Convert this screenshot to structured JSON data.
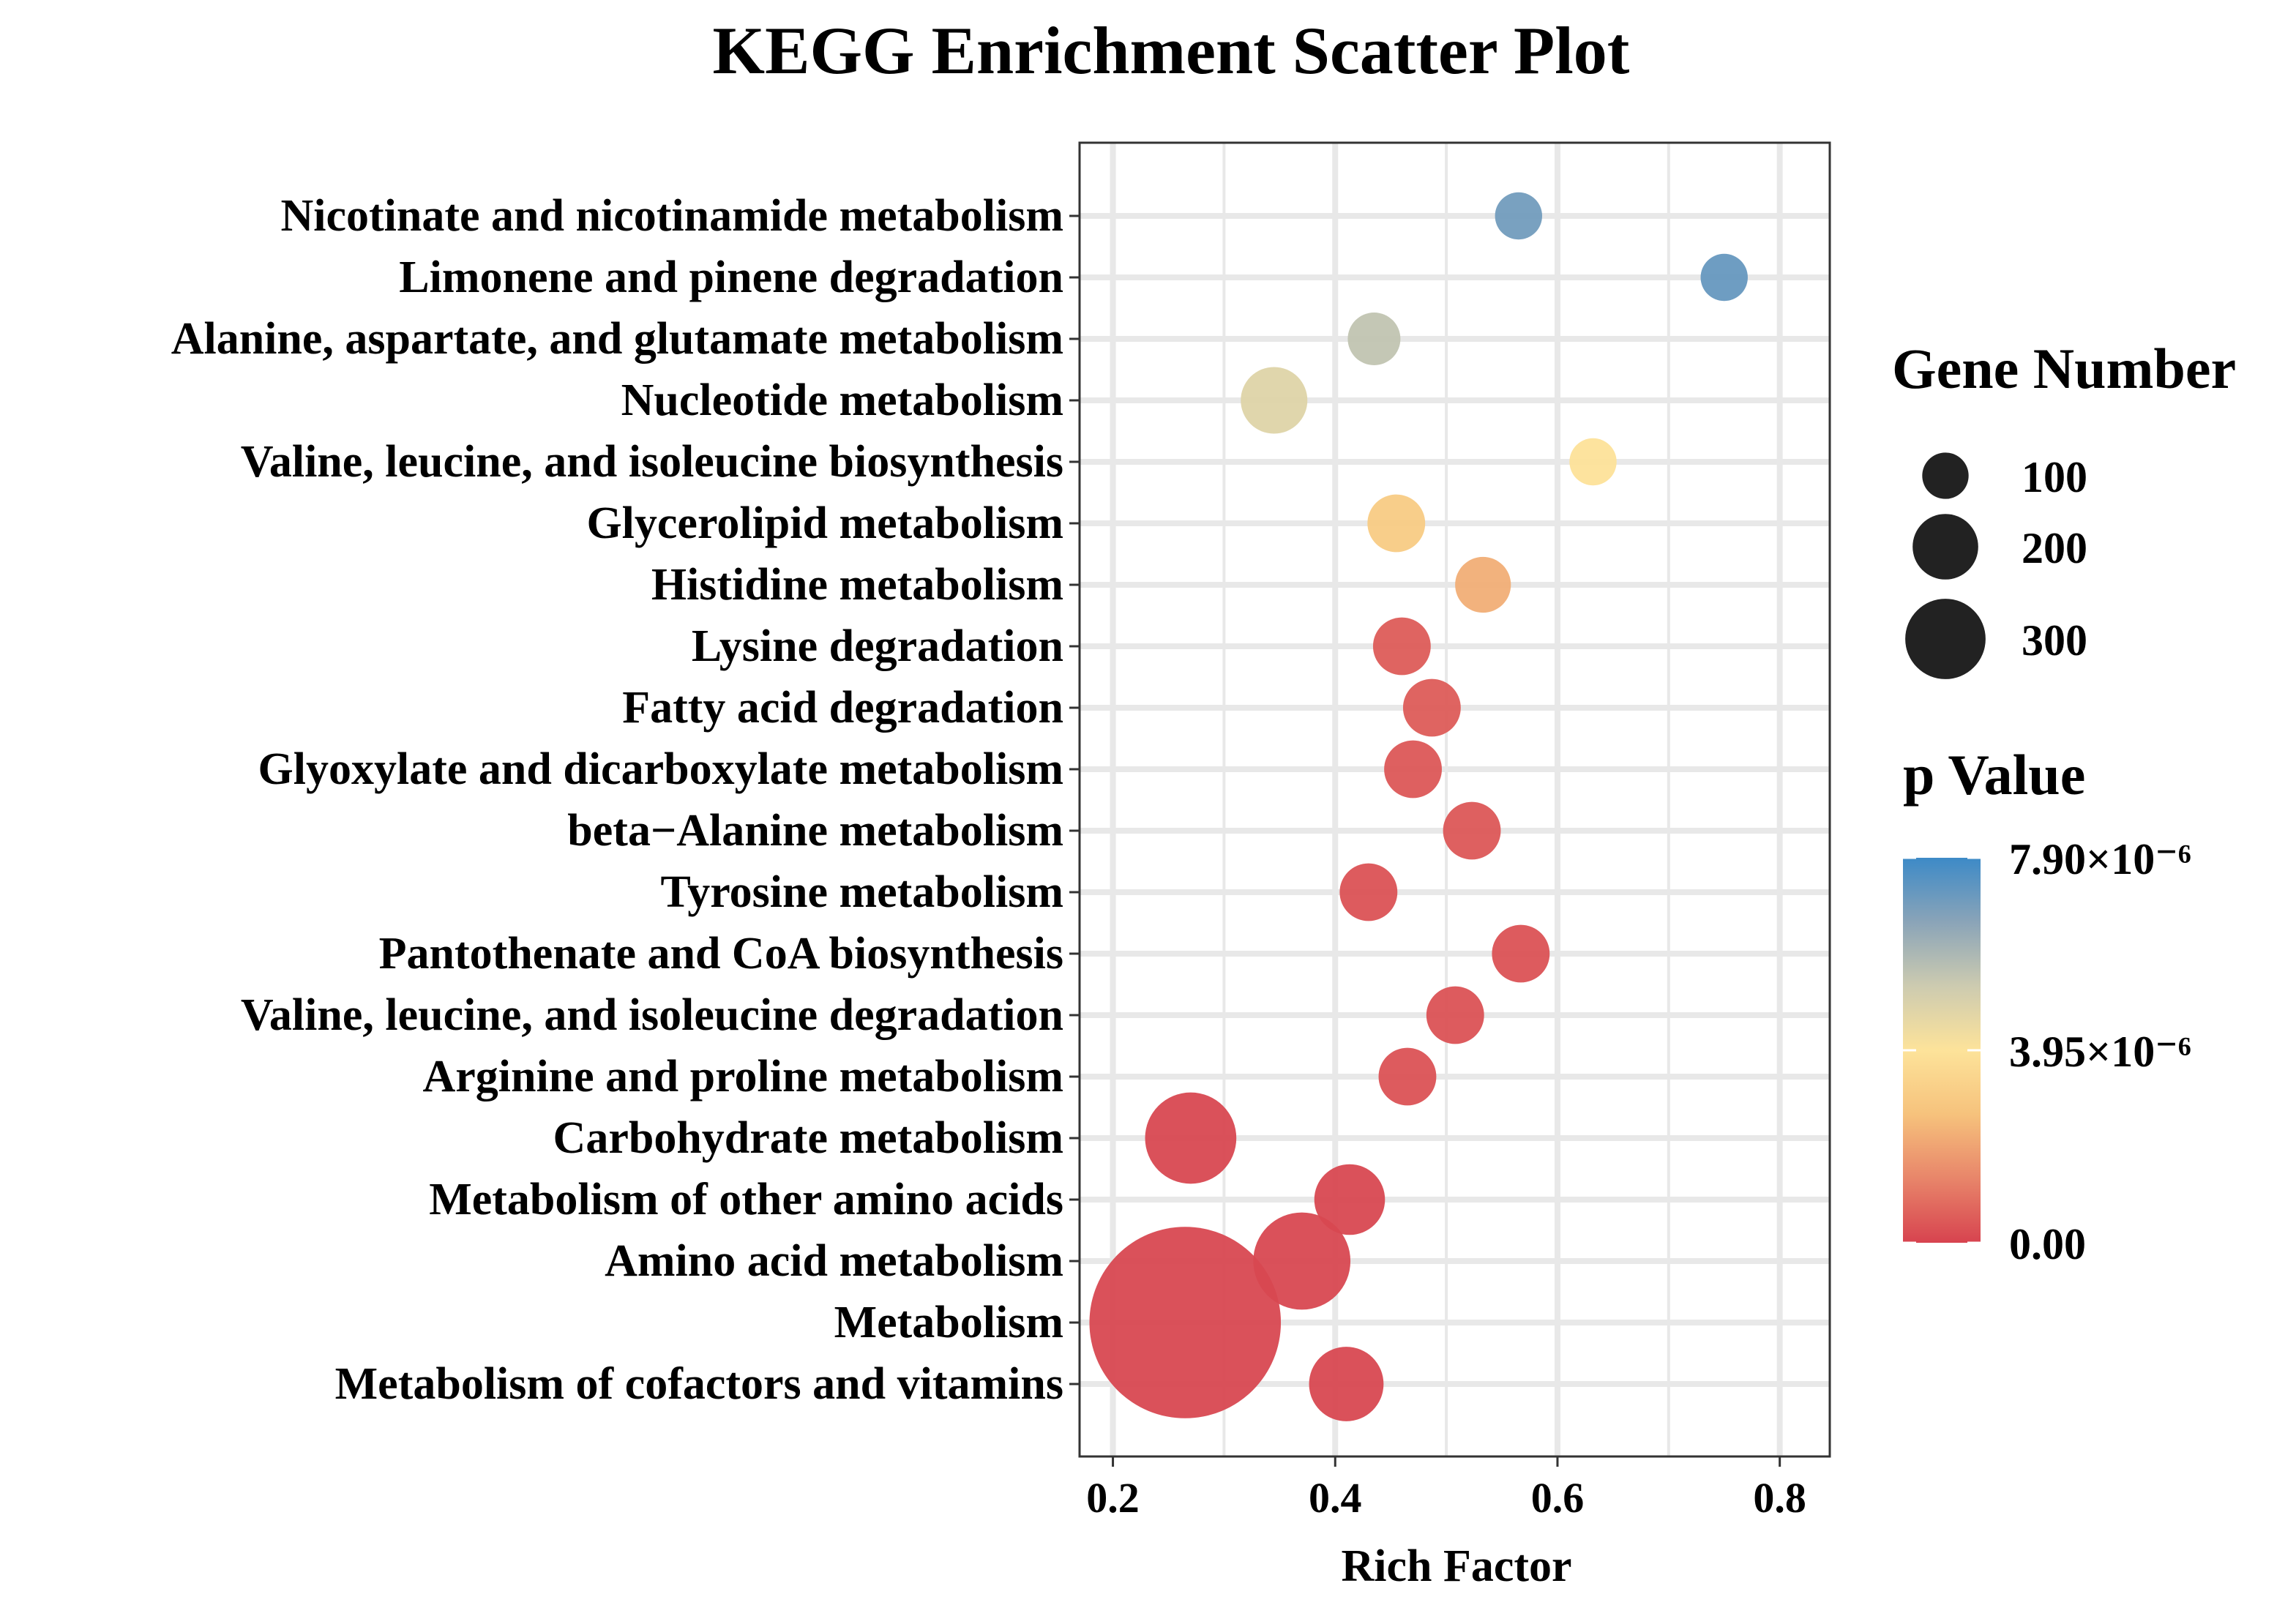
{
  "chart_data": {
    "type": "scatter",
    "title": "KEGG Enrichment Scatter Plot",
    "xlabel": "Rich Factor",
    "ylabel": "",
    "xlim": [
      0.17,
      0.845
    ],
    "x_ticks": [
      0.2,
      0.4,
      0.6,
      0.8
    ],
    "x_tick_labels": [
      "0.2",
      "0.4",
      "0.6",
      "0.8"
    ],
    "grid": true,
    "legend_position": "right",
    "categories": [
      "Nicotinate and nicotinamide metabolism",
      "Limonene and pinene degradation",
      "Alanine, aspartate, and glutamate metabolism",
      "Nucleotide metabolism",
      "Valine, leucine, and isoleucine biosynthesis",
      "Glycerolipid metabolism",
      "Histidine metabolism",
      "Lysine degradation",
      "Fatty acid degradation",
      "Glyoxylate and dicarboxylate metabolism",
      "beta−Alanine metabolism",
      "Tyrosine metabolism",
      "Pantothenate and CoA biosynthesis",
      "Valine, leucine, and isoleucine degradation",
      "Arginine and proline metabolism",
      "Carbohydrate metabolism",
      "Metabolism of other amino acids",
      "Amino acid metabolism",
      "Metabolism",
      "Metabolism of cofactors and vitamins"
    ],
    "points": [
      {
        "category": "Nicotinate and nicotinamide metabolism",
        "rich_factor": 0.565,
        "gene_number": 20,
        "p_value": 7e-06
      },
      {
        "category": "Limonene and pinene degradation",
        "rich_factor": 0.75,
        "gene_number": 20,
        "p_value": 7.2e-06
      },
      {
        "category": "Alanine, aspartate, and glutamate metabolism",
        "rich_factor": 0.435,
        "gene_number": 25,
        "p_value": 5.5e-06
      },
      {
        "category": "Nucleotide metabolism",
        "rich_factor": 0.345,
        "gene_number": 40,
        "p_value": 4.8e-06
      },
      {
        "category": "Valine, leucine, and isoleucine biosynthesis",
        "rich_factor": 0.632,
        "gene_number": 20,
        "p_value": 3.9e-06
      },
      {
        "category": "Glycerolipid metabolism",
        "rich_factor": 0.455,
        "gene_number": 30,
        "p_value": 3e-06
      },
      {
        "category": "Histidine metabolism",
        "rich_factor": 0.533,
        "gene_number": 28,
        "p_value": 2.2e-06
      },
      {
        "category": "Lysine degradation",
        "rich_factor": 0.46,
        "gene_number": 30,
        "p_value": 5e-07
      },
      {
        "category": "Fatty acid degradation",
        "rich_factor": 0.487,
        "gene_number": 30,
        "p_value": 5e-07
      },
      {
        "category": "Glyoxylate and dicarboxylate metabolism",
        "rich_factor": 0.47,
        "gene_number": 30,
        "p_value": 4e-07
      },
      {
        "category": "beta−Alanine metabolism",
        "rich_factor": 0.523,
        "gene_number": 30,
        "p_value": 4e-07
      },
      {
        "category": "Tyrosine metabolism",
        "rich_factor": 0.43,
        "gene_number": 30,
        "p_value": 3e-07
      },
      {
        "category": "Pantothenate and CoA biosynthesis",
        "rich_factor": 0.567,
        "gene_number": 30,
        "p_value": 3e-07
      },
      {
        "category": "Valine, leucine, and isoleucine degradation",
        "rich_factor": 0.508,
        "gene_number": 30,
        "p_value": 3e-07
      },
      {
        "category": "Arginine and proline metabolism",
        "rich_factor": 0.465,
        "gene_number": 30,
        "p_value": 3e-07
      },
      {
        "category": "Carbohydrate metabolism",
        "rich_factor": 0.27,
        "gene_number": 75,
        "p_value": 1e-07
      },
      {
        "category": "Metabolism of other amino acids",
        "rich_factor": 0.413,
        "gene_number": 45,
        "p_value": 1e-07
      },
      {
        "category": "Amino acid metabolism",
        "rich_factor": 0.37,
        "gene_number": 85,
        "p_value": 1e-07
      },
      {
        "category": "Metabolism",
        "rich_factor": 0.265,
        "gene_number": 330,
        "p_value": 1e-07
      },
      {
        "category": "Metabolism of cofactors and vitamins",
        "rich_factor": 0.41,
        "gene_number": 50,
        "p_value": 1e-07
      }
    ],
    "size_legend": {
      "title": "Gene Number",
      "entries": [
        {
          "value": 100,
          "label": "100"
        },
        {
          "value": 200,
          "label": "200"
        },
        {
          "value": 300,
          "label": "300"
        }
      ]
    },
    "color_legend": {
      "title": "p Value",
      "range": [
        0,
        7.9e-06
      ],
      "ticks": [
        {
          "value": 7.9e-06,
          "label": "7.90×10⁻⁶"
        },
        {
          "value": 3.95e-06,
          "label": "3.95×10⁻⁶"
        },
        {
          "value": 0,
          "label": "0.00"
        }
      ],
      "colors_low_to_high": [
        "#d7434f",
        "#e8856a",
        "#f6c27c",
        "#fde39a",
        "#cdcbb0",
        "#8aa4b8",
        "#3d8ac7"
      ]
    },
    "colors": {
      "grid": "#e8e8e8",
      "frame": "#333333",
      "size_legend_dot": "#222222"
    }
  }
}
